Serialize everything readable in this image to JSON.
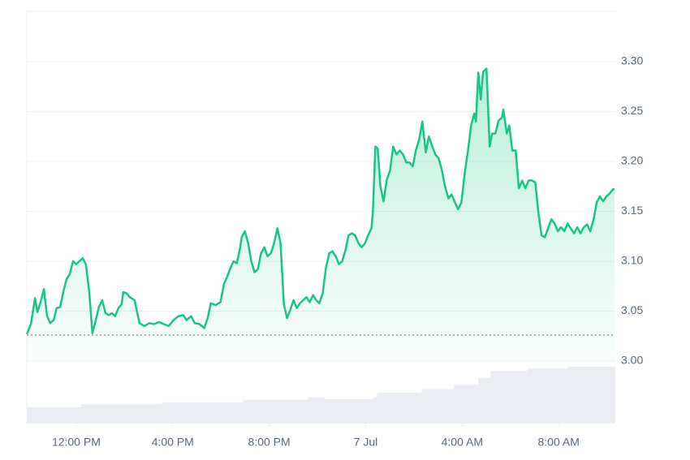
{
  "chart_data": {
    "type": "line",
    "x": [
      9.95,
      10.12,
      10.29,
      10.39,
      10.52,
      10.66,
      10.79,
      10.92,
      11.06,
      11.19,
      11.33,
      11.46,
      11.6,
      11.73,
      11.87,
      12,
      12.13,
      12.27,
      12.4,
      12.54,
      12.67,
      12.81,
      12.94,
      13.08,
      13.21,
      13.34,
      13.48,
      13.61,
      13.75,
      13.88,
      13.95,
      14.08,
      14.22,
      14.42,
      14.62,
      14.82,
      15.03,
      15.23,
      15.43,
      15.63,
      15.83,
      16.03,
      16.24,
      16.44,
      16.57,
      16.77,
      16.91,
      17.11,
      17.31,
      17.45,
      17.58,
      17.78,
      17.98,
      18.12,
      18.25,
      18.39,
      18.52,
      18.66,
      18.79,
      18.86,
      18.99,
      19.13,
      19.26,
      19.39,
      19.53,
      19.66,
      19.8,
      19.93,
      20.07,
      20.2,
      20.34,
      20.47,
      20.61,
      20.74,
      20.87,
      21.01,
      21.14,
      21.28,
      21.41,
      21.55,
      21.68,
      21.82,
      21.95,
      22.08,
      22.22,
      22.35,
      22.49,
      22.62,
      22.76,
      22.89,
      23.03,
      23.16,
      23.29,
      23.43,
      23.56,
      23.7,
      23.83,
      23.97,
      24.1,
      24.24,
      24.3,
      24.4,
      24.5,
      24.61,
      24.74,
      24.87,
      25.01,
      25.14,
      25.28,
      25.41,
      25.55,
      25.68,
      25.82,
      25.95,
      26.08,
      26.22,
      26.35,
      26.49,
      26.62,
      26.76,
      26.89,
      27.03,
      27.16,
      27.29,
      27.43,
      27.56,
      27.7,
      27.83,
      27.97,
      28.1,
      28.24,
      28.37,
      28.5,
      28.57,
      28.67,
      28.77,
      28.87,
      29.01,
      29.14,
      29.24,
      29.38,
      29.51,
      29.65,
      29.71,
      29.85,
      29.95,
      30.08,
      30.22,
      30.35,
      30.49,
      30.62,
      30.76,
      30.89,
      31.03,
      31.16,
      31.29,
      31.43,
      31.56,
      31.7,
      31.83,
      31.97,
      32.1,
      32.24,
      32.37,
      32.5,
      32.64,
      32.77,
      32.91,
      33.04,
      33.18,
      33.31,
      33.45,
      33.58,
      33.71,
      33.85,
      33.98,
      34.12,
      34.25,
      34.32
    ],
    "series": [
      {
        "color": "#16c784",
        "values": [
          3.027,
          3.037,
          3.063,
          3.049,
          3.059,
          3.072,
          3.045,
          3.038,
          3.041,
          3.053,
          3.054,
          3.069,
          3.082,
          3.087,
          3.1,
          3.097,
          3.1,
          3.103,
          3.097,
          3.069,
          3.028,
          3.041,
          3.054,
          3.061,
          3.048,
          3.046,
          3.048,
          3.045,
          3.053,
          3.057,
          3.069,
          3.068,
          3.064,
          3.061,
          3.038,
          3.035,
          3.038,
          3.037,
          3.039,
          3.037,
          3.035,
          3.041,
          3.045,
          3.046,
          3.041,
          3.045,
          3.038,
          3.037,
          3.033,
          3.043,
          3.058,
          3.056,
          3.059,
          3.077,
          3.084,
          3.093,
          3.1,
          3.098,
          3.113,
          3.124,
          3.13,
          3.118,
          3.1,
          3.089,
          3.092,
          3.108,
          3.114,
          3.105,
          3.108,
          3.118,
          3.133,
          3.118,
          3.057,
          3.043,
          3.051,
          3.061,
          3.053,
          3.058,
          3.061,
          3.064,
          3.059,
          3.066,
          3.061,
          3.058,
          3.068,
          3.093,
          3.108,
          3.11,
          3.105,
          3.097,
          3.1,
          3.111,
          3.126,
          3.128,
          3.126,
          3.118,
          3.114,
          3.118,
          3.126,
          3.133,
          3.15,
          3.215,
          3.213,
          3.175,
          3.16,
          3.181,
          3.191,
          3.215,
          3.207,
          3.211,
          3.207,
          3.199,
          3.199,
          3.195,
          3.211,
          3.222,
          3.24,
          3.209,
          3.225,
          3.215,
          3.207,
          3.203,
          3.191,
          3.175,
          3.163,
          3.167,
          3.159,
          3.152,
          3.159,
          3.187,
          3.211,
          3.236,
          3.248,
          3.24,
          3.289,
          3.262,
          3.29,
          3.293,
          3.215,
          3.228,
          3.228,
          3.241,
          3.244,
          3.252,
          3.228,
          3.236,
          3.211,
          3.211,
          3.173,
          3.181,
          3.173,
          3.181,
          3.181,
          3.179,
          3.149,
          3.126,
          3.124,
          3.133,
          3.142,
          3.138,
          3.13,
          3.134,
          3.13,
          3.138,
          3.133,
          3.128,
          3.134,
          3.128,
          3.134,
          3.137,
          3.13,
          3.142,
          3.159,
          3.165,
          3.16,
          3.165,
          3.168,
          3.172,
          3.172
        ]
      }
    ],
    "baseline": 3.026,
    "volume": {
      "color": "#e9ecf1",
      "x": [
        9.95,
        12.2,
        15.56,
        18.92,
        21.61,
        22.29,
        24.3,
        24.47,
        26.32,
        27.66,
        28.67,
        29.18,
        30.69,
        32.37,
        33.85,
        34.32
      ],
      "values": [
        26,
        31,
        34,
        38,
        42,
        39,
        42,
        49,
        55,
        62,
        73,
        84,
        88,
        91,
        91,
        91
      ],
      "ylim": [
        0,
        100
      ]
    },
    "xlim": [
      9.95,
      34.35
    ],
    "xticks": [
      {
        "value": 12,
        "label": "12:00 PM"
      },
      {
        "value": 16,
        "label": "4:00 PM"
      },
      {
        "value": 20,
        "label": "8:00 PM"
      },
      {
        "value": 24,
        "label": "7 Jul"
      },
      {
        "value": 28,
        "label": "4:00 AM"
      },
      {
        "value": 32,
        "label": "8:00 AM"
      }
    ],
    "ylim": [
      3.0,
      3.35
    ],
    "yticks": [
      {
        "value": 3,
        "label": "3.00"
      },
      3.05,
      {
        "value": 3.1,
        "label": "3.10"
      },
      3.15,
      {
        "value": 3.2,
        "label": "3.20"
      },
      3.25,
      {
        "value": 3.3,
        "label": "3.30"
      }
    ],
    "grid": true
  }
}
